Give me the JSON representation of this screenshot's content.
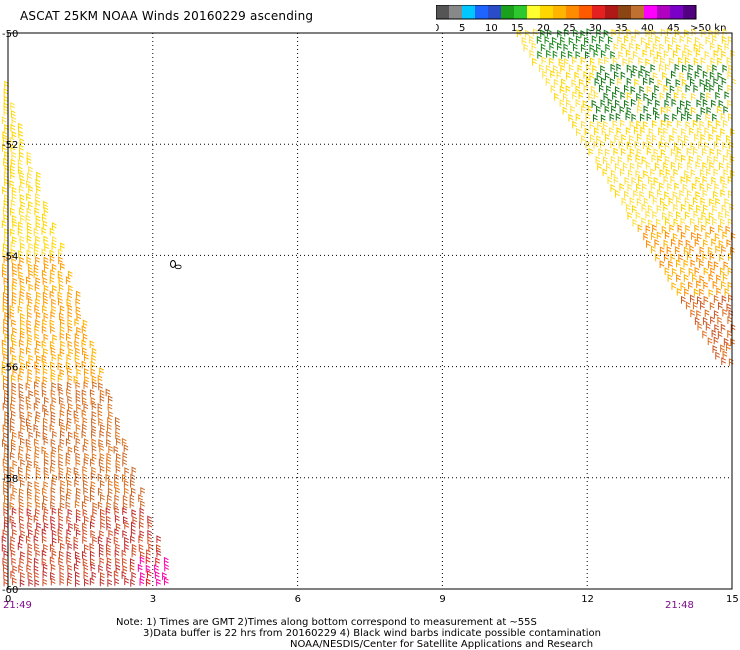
{
  "title": "ASCAT 25KM NOAA Winds 20160229 ascending",
  "legend": {
    "labels": [
      "0",
      "5",
      "10",
      "15",
      "20",
      "25",
      "30",
      "35",
      "40",
      "45",
      ">50 knots"
    ],
    "colors": [
      "#555555",
      "#888888",
      "#00c8ff",
      "#1e64ff",
      "#2a4cc8",
      "#1aa01a",
      "#2ec82e",
      "#ffff30",
      "#ffd700",
      "#ffb400",
      "#ff8c00",
      "#ff5a00",
      "#e52020",
      "#b01818",
      "#8b4513",
      "#c07030",
      "#ff00ff",
      "#b000c0",
      "#7a00c8",
      "#500080"
    ]
  },
  "axes": {
    "x_ticks": [
      "0",
      "3",
      "6",
      "9",
      "12",
      "15"
    ],
    "y_ticks": [
      "-50",
      "-52",
      "-54",
      "-56",
      "-58",
      "-60"
    ],
    "x_range": [
      0,
      15
    ],
    "y_range": [
      -60,
      -50
    ]
  },
  "pass_times": {
    "left": "21:49",
    "right": "21:48"
  },
  "contour_label": "0",
  "notes": {
    "line1": "Note: 1) Times are GMT 2)Times along bottom correspond to measurement at ~55S",
    "line2": "3)Data buffer is 22 hrs from 20160229 4) Black wind barbs indicate possible contamination",
    "line3": "NOAA/NESDIS/Center for Satellite Applications and Research"
  }
}
